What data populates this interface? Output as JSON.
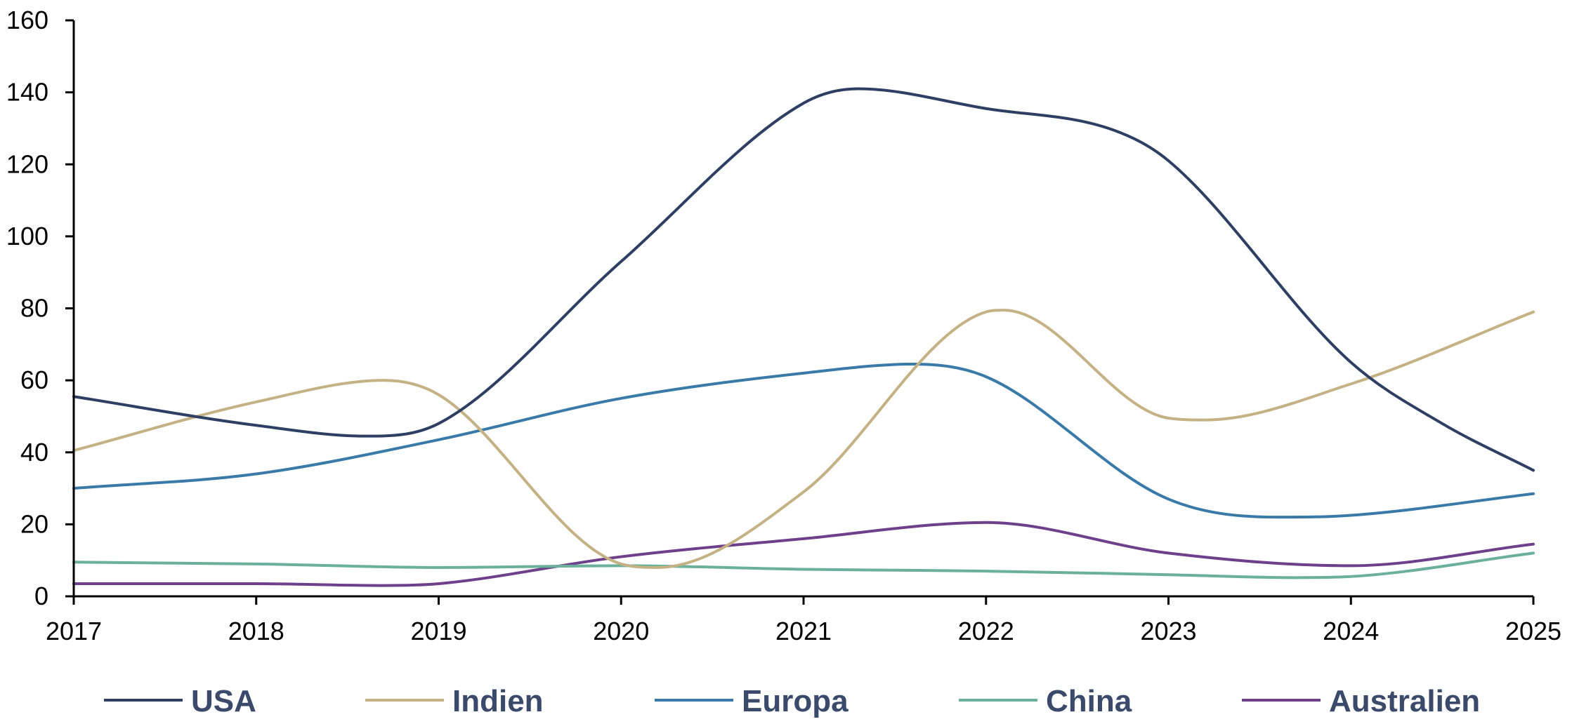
{
  "chart_data": {
    "type": "line",
    "title": "",
    "xlabel": "",
    "ylabel": "",
    "x": [
      2017,
      2018,
      2019,
      2020,
      2021,
      2022,
      2023,
      2024,
      2025
    ],
    "xlim": [
      2017,
      2025
    ],
    "ylim": [
      0,
      160
    ],
    "y_ticks": [
      0,
      20,
      40,
      60,
      80,
      100,
      120,
      140,
      160
    ],
    "x_tick_labels": [
      "2017",
      "2018",
      "2019",
      "2020",
      "2021",
      "2022",
      "2023",
      "2024",
      "2025"
    ],
    "y_tick_labels": [
      "0",
      "20",
      "40",
      "60",
      "80",
      "100",
      "120",
      "140",
      "160"
    ],
    "grid": false,
    "legend_position": "bottom",
    "series": [
      {
        "name": "USA",
        "color": "#2e3f63",
        "points": [
          [
            2017,
            55.5
          ],
          [
            2018,
            47.5
          ],
          [
            2018.6,
            44.5
          ],
          [
            2019,
            48
          ],
          [
            2020,
            93
          ],
          [
            2021,
            137
          ],
          [
            2021.3,
            141
          ],
          [
            2022,
            135.5
          ],
          [
            2022.7,
            129.5
          ],
          [
            2023,
            121
          ],
          [
            2024,
            65
          ],
          [
            2024.5,
            48
          ],
          [
            2025,
            35
          ]
        ]
      },
      {
        "name": "Indien",
        "color": "#c4b284",
        "points": [
          [
            2017,
            40.5
          ],
          [
            2018,
            54
          ],
          [
            2018.7,
            60
          ],
          [
            2019,
            56
          ],
          [
            2020,
            9
          ],
          [
            2020.2,
            8
          ],
          [
            2021,
            29
          ],
          [
            2022,
            79
          ],
          [
            2022.1,
            79.5
          ],
          [
            2023,
            49.5
          ],
          [
            2023.2,
            49
          ],
          [
            2024,
            59
          ],
          [
            2025,
            79
          ]
        ]
      },
      {
        "name": "Europa",
        "color": "#3a7aa8",
        "points": [
          [
            2017,
            30
          ],
          [
            2018,
            34
          ],
          [
            2019,
            43.5
          ],
          [
            2020,
            55
          ],
          [
            2021,
            62
          ],
          [
            2021.6,
            64.5
          ],
          [
            2022,
            61
          ],
          [
            2023,
            27
          ],
          [
            2023.6,
            22
          ],
          [
            2024,
            22.5
          ],
          [
            2025,
            28.5
          ]
        ]
      },
      {
        "name": "China",
        "color": "#6ab09a",
        "points": [
          [
            2017,
            9.5
          ],
          [
            2018,
            9
          ],
          [
            2019,
            8
          ],
          [
            2020,
            8.5
          ],
          [
            2021,
            7.5
          ],
          [
            2022,
            7
          ],
          [
            2023,
            6
          ],
          [
            2023.7,
            5.2
          ],
          [
            2024,
            5.5
          ],
          [
            2025,
            12
          ]
        ]
      },
      {
        "name": "Australien",
        "color": "#6e3f8a",
        "points": [
          [
            2017,
            3.5
          ],
          [
            2018,
            3.5
          ],
          [
            2018.7,
            3
          ],
          [
            2019,
            3.5
          ],
          [
            2020,
            11
          ],
          [
            2021,
            16
          ],
          [
            2022,
            20.5
          ],
          [
            2023,
            12
          ],
          [
            2024,
            8.5
          ],
          [
            2025,
            14.5
          ]
        ]
      }
    ]
  },
  "legend": {
    "text_color": "#3b4a6b"
  }
}
